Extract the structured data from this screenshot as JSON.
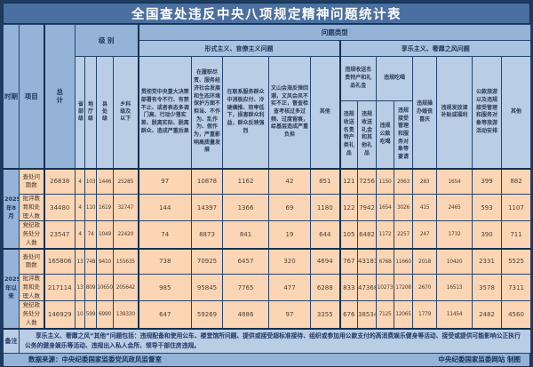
{
  "title": "全国查处违反中央八项规定精神问题统计表",
  "header": {
    "period": "时期",
    "item": "项目",
    "total": "总计",
    "level_group": "级 别",
    "levels": [
      "省部级",
      "地厅级",
      "县处级",
      "乡科级及以下"
    ],
    "problem_type_group": "问题类型",
    "formalism_group": "形式主义、官僚主义问题",
    "hedonism_group": "享乐主义、奢靡之风问题",
    "formalism_cols": [
      "贯彻党中央重大决策部署有令不行、有禁不止、或者表态多调门高、行动少落实差、脱离实际、脱离群众、造成严重后果",
      "在履职尽责、服务经济社会发展和生态环境保护方面不担当、不作为、乱作为、假作为，严重影响高质量发展",
      "在联系服务群众中消极应付、冷硬横推、效率低下，损害群众利益，群众反映强烈",
      "文山会海反弹回潮，文风会风不实不正，督查检查考核过多过频、过度留痕，给基层造成严重负担",
      "其他"
    ],
    "hedonism": {
      "gift_group": "违规收送名贵特产和礼品礼金",
      "gift_cols": [
        "违规收送名贵特产类礼品",
        "违规收送礼金和其他礼品"
      ],
      "dining_group": "违规吃喝",
      "dining_cols": [
        "违规公款吃喝",
        "违规接受管理和服务对象等宴请"
      ],
      "other_cols": [
        "违规操办婚丧喜庆",
        "违规发放津补贴或福利",
        "公款旅游以及违规接受管理和服务对象等旅游活动安排",
        "其他"
      ]
    }
  },
  "rows": [
    {
      "period": "2025年8月",
      "item": "查处问题数",
      "values": [
        26838,
        4,
        103,
        1446,
        25285,
        97,
        10878,
        1162,
        42,
        851,
        121,
        7256,
        1150,
        2063,
        283,
        1654,
        399,
        882
      ]
    },
    {
      "period": "2025年8月",
      "item": "批评教育和处理人数",
      "values": [
        34480,
        4,
        110,
        1619,
        32747,
        144,
        14397,
        1366,
        69,
        1180,
        122,
        7942,
        1654,
        3026,
        415,
        2465,
        593,
        1107
      ]
    },
    {
      "period": "2025年8月",
      "item": "党纪政务处分人数",
      "values": [
        23547,
        4,
        74,
        1049,
        22420,
        74,
        8873,
        841,
        19,
        644,
        105,
        6482,
        1172,
        2257,
        247,
        1732,
        390,
        711
      ]
    },
    {
      "period": "2025年以来",
      "item": "查处问题数",
      "values": [
        165806,
        13,
        748,
        9410,
        155635,
        738,
        70925,
        6457,
        320,
        4694,
        767,
        43183,
        6768,
        11660,
        2018,
        10420,
        2331,
        5525
      ]
    },
    {
      "period": "2025年以来",
      "item": "批评教育和处理人数",
      "values": [
        217114,
        13,
        809,
        10650,
        205642,
        985,
        95845,
        7765,
        477,
        6288,
        833,
        47368,
        10273,
        17208,
        2670,
        16513,
        3578,
        7311
      ]
    },
    {
      "period": "2025年以来",
      "item": "党纪政务处分人数",
      "values": [
        146929,
        10,
        599,
        6990,
        139330,
        647,
        59269,
        4886,
        97,
        3355,
        676,
        38534,
        7125,
        12065,
        1779,
        11454,
        2482,
        4560
      ]
    }
  ],
  "note_label": "备注",
  "note": "享乐主义、奢靡之风“其他”问题包括：违规配备和使用公车、楼堂馆所问题、提供或接受超标准接待、组织或参加用公款支付的高消费娱乐健身等活动、接受或提供可能影响公正执行公务的健身娱乐等活动、违规出入私人会所、领导干部住房违规。",
  "source": "数据来源：中央纪委国家监委党风政风监督室",
  "credit": "中央纪委国家监委网站 制图",
  "colors": {
    "frame": "#1d3a5f",
    "title_bg": "#4a6fa0",
    "header_mid": "#95b3d7",
    "header_light": "#b9cde5",
    "data_cell": "#fcd5b4"
  }
}
